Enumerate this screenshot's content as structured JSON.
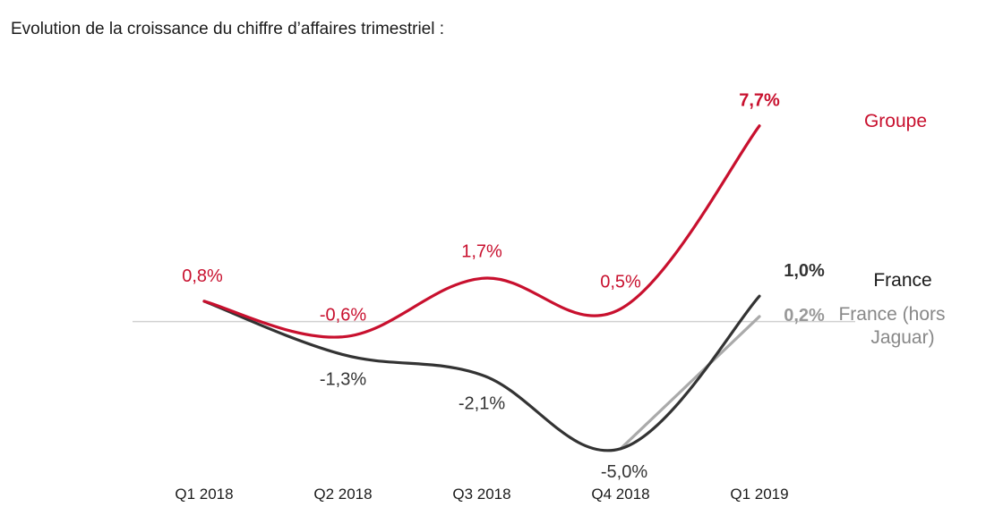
{
  "title": "Evolution de la croissance du chiffre d’affaires trimestriel :",
  "colors": {
    "groupe": "#c8102e",
    "france": "#333333",
    "france_hors": "#aaaaaa",
    "zero_line": "#d0d0d0"
  },
  "chart_data": {
    "type": "line",
    "title": "Evolution de la croissance du chiffre d’affaires trimestriel :",
    "categories": [
      "Q1 2018",
      "Q2 2018",
      "Q3 2018",
      "Q4 2018",
      "Q1 2019"
    ],
    "ylim": [
      -5.5,
      8.5
    ],
    "grid": false,
    "legend": "right",
    "series": [
      {
        "name": "Groupe",
        "values": [
          0.8,
          -0.6,
          1.7,
          0.5,
          7.7
        ],
        "labels": [
          "0,8%",
          "-0,6%",
          "1,7%",
          "0,5%",
          "7,7%"
        ],
        "color": "#c8102e"
      },
      {
        "name": "France",
        "values": [
          0.8,
          -1.3,
          -2.1,
          -5.0,
          1.0
        ],
        "labels": [
          "",
          "-1,3%",
          "-2,1%",
          "-5,0%",
          "1,0%"
        ],
        "color": "#333333"
      },
      {
        "name": "France (hors Jaguar)",
        "name_lines": [
          "France (hors",
          "Jaguar)"
        ],
        "values": [
          null,
          null,
          null,
          -5.0,
          0.2
        ],
        "labels": [
          "",
          "",
          "",
          "",
          "0,2%"
        ],
        "color": "#aaaaaa"
      }
    ]
  }
}
